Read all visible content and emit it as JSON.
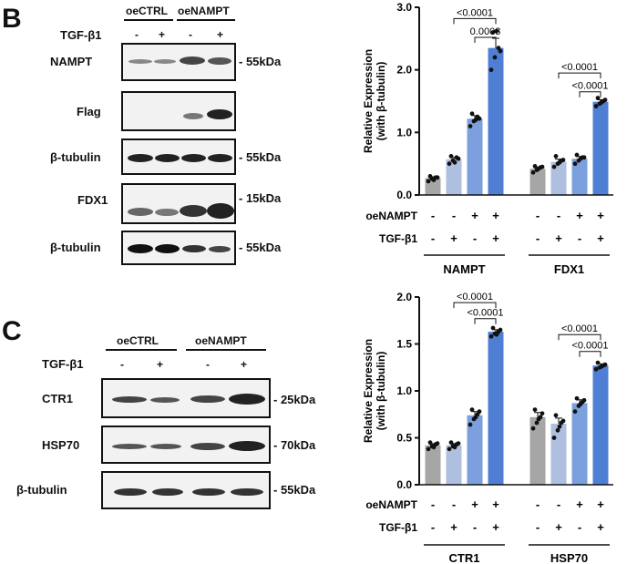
{
  "panelB": {
    "letter": "B",
    "groups": [
      "oeCTRL",
      "oeNAMPT"
    ],
    "treatment_label": "TGF-β1",
    "treatment_signs": [
      "-",
      "+",
      "-",
      "+"
    ],
    "rows": [
      {
        "label": "NAMPT",
        "size": "- 55kDa"
      },
      {
        "label": "Flag",
        "size": ""
      },
      {
        "label": "β-tubulin",
        "size": "- 55kDa"
      },
      {
        "label": "FDX1",
        "size": "- 15kDa"
      },
      {
        "label": "β-tubulin",
        "size": "- 55kDa"
      }
    ]
  },
  "panelC": {
    "letter": "C",
    "groups": [
      "oeCTRL",
      "oeNAMPT"
    ],
    "treatment_label": "TGF-β1",
    "treatment_signs": [
      "-",
      "+",
      "-",
      "+"
    ],
    "rows": [
      {
        "label": "CTR1",
        "size": "- 25kDa"
      },
      {
        "label": "HSP70",
        "size": "- 70kDa"
      },
      {
        "label": "β-tubulin",
        "size": "- 55kDa"
      }
    ]
  },
  "colors": [
    "#a6a6a6",
    "#aebfe0",
    "#7ca0de",
    "#4f7fd4"
  ],
  "chart_data": [
    {
      "type": "bar",
      "ylabel": "Relative Expression (with β-tubulin)",
      "ylim": [
        0,
        3.0
      ],
      "yticks": [
        "0.0",
        "1.0",
        "2.0",
        "3.0"
      ],
      "groups": [
        "NAMPT",
        "FDX1"
      ],
      "series": [
        {
          "values": [
            0.27,
            0.42
          ]
        },
        {
          "values": [
            0.57,
            0.53
          ]
        },
        {
          "values": [
            1.22,
            0.58
          ]
        },
        {
          "values": [
            2.35,
            1.49
          ]
        }
      ],
      "points": [
        [
          0.22,
          0.26,
          0.28,
          0.3,
          0.24,
          0.28
        ],
        [
          0.5,
          0.55,
          0.6,
          0.62,
          0.52,
          0.58
        ],
        [
          1.1,
          1.18,
          1.25,
          1.3,
          1.2,
          1.22
        ],
        [
          2.0,
          2.2,
          2.35,
          2.6,
          2.62,
          2.3
        ],
        [
          0.36,
          0.4,
          0.44,
          0.46,
          0.42,
          0.45
        ],
        [
          0.45,
          0.5,
          0.55,
          0.62,
          0.52,
          0.56
        ],
        [
          0.5,
          0.55,
          0.6,
          0.64,
          0.58,
          0.6
        ],
        [
          1.42,
          1.46,
          1.5,
          1.55,
          1.48,
          1.52
        ]
      ],
      "brackets": [
        {
          "group": 0,
          "from": 1,
          "to": 3,
          "y": 2.82,
          "label": "<0.0001"
        },
        {
          "group": 0,
          "from": 2,
          "to": 3,
          "y": 2.52,
          "label": "0.0003"
        },
        {
          "group": 1,
          "from": 1,
          "to": 3,
          "y": 1.95,
          "label": "<0.0001"
        },
        {
          "group": 1,
          "from": 2,
          "to": 3,
          "y": 1.65,
          "label": "<0.0001"
        }
      ],
      "conditions": [
        {
          "label": "oeNAMPT",
          "signs": [
            "-",
            "-",
            "+",
            "+",
            "-",
            "-",
            "+",
            "+"
          ]
        },
        {
          "label": "TGF-β1",
          "signs": [
            "-",
            "+",
            "-",
            "+",
            "-",
            "+",
            "-",
            "+"
          ]
        }
      ]
    },
    {
      "type": "bar",
      "ylabel": "Relative Expression (with β-tubulin)",
      "ylim": [
        0,
        2.0
      ],
      "yticks": [
        "0.0",
        "0.5",
        "1.0",
        "1.5",
        "2.0"
      ],
      "groups": [
        "CTR1",
        "HSP70"
      ],
      "series": [
        {
          "values": [
            0.42,
            0.72
          ]
        },
        {
          "values": [
            0.42,
            0.65
          ]
        },
        {
          "values": [
            0.74,
            0.87
          ]
        },
        {
          "values": [
            1.63,
            1.27
          ]
        }
      ],
      "points": [
        [
          0.38,
          0.41,
          0.43,
          0.45,
          0.4,
          0.44
        ],
        [
          0.38,
          0.41,
          0.43,
          0.45,
          0.4,
          0.44
        ],
        [
          0.64,
          0.7,
          0.75,
          0.8,
          0.72,
          0.78
        ],
        [
          1.58,
          1.61,
          1.63,
          1.67,
          1.6,
          1.65
        ],
        [
          0.6,
          0.66,
          0.72,
          0.8,
          0.7,
          0.76
        ],
        [
          0.5,
          0.58,
          0.66,
          0.74,
          0.62,
          0.68
        ],
        [
          0.78,
          0.84,
          0.88,
          0.92,
          0.86,
          0.9
        ],
        [
          1.23,
          1.25,
          1.27,
          1.3,
          1.26,
          1.28
        ]
      ],
      "brackets": [
        {
          "group": 0,
          "from": 1,
          "to": 3,
          "y": 1.94,
          "label": "<0.0001"
        },
        {
          "group": 0,
          "from": 2,
          "to": 3,
          "y": 1.77,
          "label": "<0.0001"
        },
        {
          "group": 1,
          "from": 1,
          "to": 3,
          "y": 1.6,
          "label": "<0.0001"
        },
        {
          "group": 1,
          "from": 2,
          "to": 3,
          "y": 1.42,
          "label": "<0.0001"
        }
      ],
      "conditions": [
        {
          "label": "oeNAMPT",
          "signs": [
            "-",
            "-",
            "+",
            "+",
            "-",
            "-",
            "+",
            "+"
          ]
        },
        {
          "label": "TGF-β1",
          "signs": [
            "-",
            "+",
            "-",
            "+",
            "-",
            "+",
            "-",
            "+"
          ]
        }
      ]
    }
  ]
}
